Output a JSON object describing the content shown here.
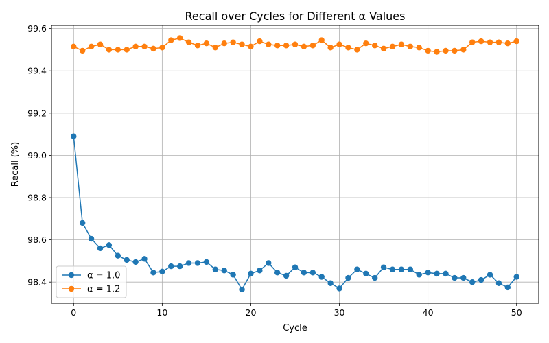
{
  "chart_data": {
    "type": "line",
    "title": "Recall over Cycles for Different α Values",
    "xlabel": "Cycle",
    "ylabel": "Recall (%)",
    "xlim": [
      -2.5,
      52.5
    ],
    "ylim": [
      98.3,
      99.615
    ],
    "xticks": [
      0,
      10,
      20,
      30,
      40,
      50
    ],
    "yticks": [
      98.4,
      98.6,
      98.8,
      99.0,
      99.2,
      99.4,
      99.6
    ],
    "grid": true,
    "legend_position": "lower-left",
    "x": [
      0,
      1,
      2,
      3,
      4,
      5,
      6,
      7,
      8,
      9,
      10,
      11,
      12,
      13,
      14,
      15,
      16,
      17,
      18,
      19,
      20,
      21,
      22,
      23,
      24,
      25,
      26,
      27,
      28,
      29,
      30,
      31,
      32,
      33,
      34,
      35,
      36,
      37,
      38,
      39,
      40,
      41,
      42,
      43,
      44,
      45,
      46,
      47,
      48,
      49,
      50
    ],
    "series": [
      {
        "name": "α = 1.0",
        "color": "#1f77b4",
        "values": [
          99.09,
          98.68,
          98.605,
          98.56,
          98.575,
          98.525,
          98.505,
          98.495,
          98.51,
          98.445,
          98.45,
          98.475,
          98.475,
          98.49,
          98.49,
          98.495,
          98.46,
          98.455,
          98.435,
          98.365,
          98.44,
          98.455,
          98.49,
          98.445,
          98.43,
          98.47,
          98.445,
          98.445,
          98.425,
          98.395,
          98.37,
          98.42,
          98.46,
          98.44,
          98.42,
          98.47,
          98.46,
          98.46,
          98.46,
          98.435,
          98.445,
          98.44,
          98.44,
          98.42,
          98.42,
          98.4,
          98.41,
          98.435,
          98.395,
          98.375,
          98.425
        ]
      },
      {
        "name": "α = 1.2",
        "color": "#ff7f0e",
        "values": [
          99.515,
          99.495,
          99.515,
          99.525,
          99.5,
          99.5,
          99.5,
          99.515,
          99.515,
          99.505,
          99.51,
          99.545,
          99.555,
          99.535,
          99.52,
          99.53,
          99.51,
          99.53,
          99.535,
          99.525,
          99.515,
          99.54,
          99.525,
          99.52,
          99.52,
          99.525,
          99.515,
          99.52,
          99.545,
          99.51,
          99.525,
          99.51,
          99.5,
          99.53,
          99.52,
          99.505,
          99.515,
          99.525,
          99.515,
          99.51,
          99.495,
          99.49,
          99.495,
          99.495,
          99.5,
          99.535,
          99.54,
          99.535,
          99.535,
          99.53,
          99.54
        ]
      }
    ]
  }
}
